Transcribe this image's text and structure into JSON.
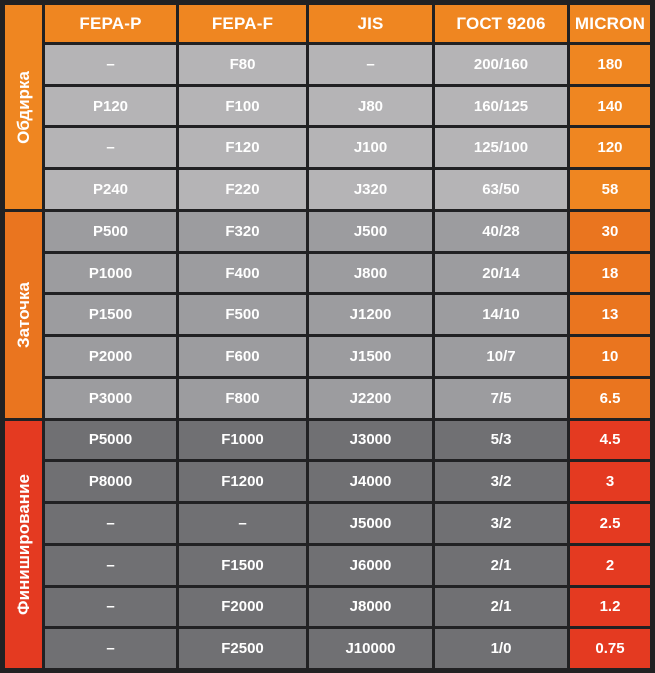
{
  "colors": {
    "header_orange": "#ef8621",
    "zatochka_orange": "#ea751f",
    "finish_red": "#e43a21",
    "group1_gray": "#b5b4b6",
    "group2_gray": "#9c9c9f",
    "group3_gray": "#707073",
    "frame_dark": "#212123",
    "text_white": "#ffffff"
  },
  "chart_data": {
    "type": "table",
    "columns": [
      "FEPA-P",
      "FEPA-F",
      "JIS",
      "ГОСТ 9206",
      "MICRON"
    ],
    "groups": [
      {
        "label": "Обдирка",
        "rows": [
          [
            "–",
            "F80",
            "–",
            "200/160",
            "180"
          ],
          [
            "P120",
            "F100",
            "J80",
            "160/125",
            "140"
          ],
          [
            "–",
            "F120",
            "J100",
            "125/100",
            "120"
          ],
          [
            "P240",
            "F220",
            "J320",
            "63/50",
            "58"
          ]
        ]
      },
      {
        "label": "Заточка",
        "rows": [
          [
            "P500",
            "F320",
            "J500",
            "40/28",
            "30"
          ],
          [
            "P1000",
            "F400",
            "J800",
            "20/14",
            "18"
          ],
          [
            "P1500",
            "F500",
            "J1200",
            "14/10",
            "13"
          ],
          [
            "P2000",
            "F600",
            "J1500",
            "10/7",
            "10"
          ],
          [
            "P3000",
            "F800",
            "J2200",
            "7/5",
            "6.5"
          ]
        ]
      },
      {
        "label": "Финиширование",
        "rows": [
          [
            "P5000",
            "F1000",
            "J3000",
            "5/3",
            "4.5"
          ],
          [
            "P8000",
            "F1200",
            "J4000",
            "3/2",
            "3"
          ],
          [
            "–",
            "–",
            "J5000",
            "3/2",
            "2.5"
          ],
          [
            "–",
            "F1500",
            "J6000",
            "2/1",
            "2"
          ],
          [
            "–",
            "F2000",
            "J8000",
            "2/1",
            "1.2"
          ],
          [
            "–",
            "F2500",
            "J10000",
            "1/0",
            "0.75"
          ]
        ]
      }
    ]
  }
}
